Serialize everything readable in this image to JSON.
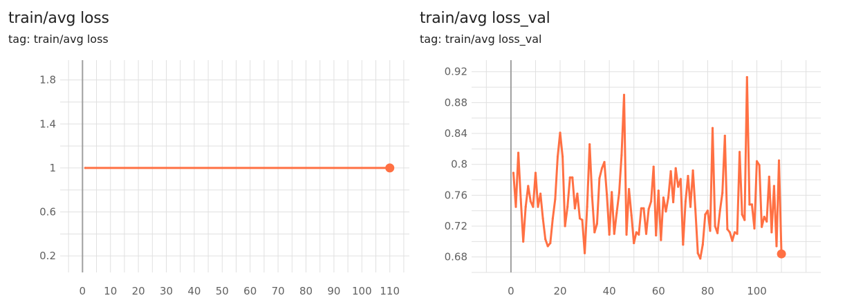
{
  "colors": {
    "series": "#ff7043",
    "grid": "#e0e0e0",
    "axis": "#9e9e9e",
    "tick_text": "#616161"
  },
  "chart_data": [
    {
      "type": "line",
      "title": "train/avg loss",
      "subtitle": "tag: train/avg loss",
      "xlabel": "",
      "ylabel": "",
      "xlim": [
        -8,
        117
      ],
      "ylim": [
        0.05,
        1.98
      ],
      "x_ticks": [
        0,
        10,
        20,
        30,
        40,
        50,
        60,
        70,
        80,
        90,
        100,
        110
      ],
      "y_ticks": [
        0.2,
        0.6,
        1,
        1.4,
        1.8
      ],
      "y_tick_labels": [
        "0.2",
        "0.6",
        "1",
        "1.4",
        "1.8"
      ],
      "grid": true,
      "last_point_marker": true,
      "series": [
        {
          "x": [
            1,
            110
          ],
          "values": [
            1,
            1
          ]
        }
      ]
    },
    {
      "type": "line",
      "title": "train/avg loss_val",
      "subtitle": "tag: train/avg loss_val",
      "xlabel": "",
      "ylabel": "",
      "xlim": [
        -16,
        126
      ],
      "ylim": [
        0.66,
        0.935
      ],
      "x_ticks": [
        0,
        20,
        40,
        60,
        80,
        100
      ],
      "y_ticks": [
        0.68,
        0.72,
        0.76,
        0.8,
        0.84,
        0.88,
        0.92
      ],
      "y_tick_labels": [
        "0.68",
        "0.72",
        "0.76",
        "0.8",
        "0.84",
        "0.88",
        "0.92"
      ],
      "grid": true,
      "last_point_marker": true,
      "series": [
        {
          "x": [
            1,
            2,
            3,
            4,
            5,
            6,
            7,
            8,
            9,
            10,
            11,
            12,
            13,
            14,
            15,
            16,
            17,
            18,
            19,
            20,
            21,
            22,
            23,
            24,
            25,
            26,
            27,
            28,
            29,
            30,
            31,
            32,
            33,
            34,
            35,
            36,
            37,
            38,
            39,
            40,
            41,
            42,
            43,
            44,
            45,
            46,
            47,
            48,
            49,
            50,
            51,
            52,
            53,
            54,
            55,
            56,
            57,
            58,
            59,
            60,
            61,
            62,
            63,
            64,
            65,
            66,
            67,
            68,
            69,
            70,
            71,
            72,
            73,
            74,
            75,
            76,
            77,
            78,
            79,
            80,
            81,
            82,
            83,
            84,
            85,
            86,
            87,
            88,
            89,
            90,
            91,
            92,
            93,
            94,
            95,
            96,
            97,
            98,
            99,
            100,
            101,
            102,
            103,
            104,
            105,
            106,
            107,
            108,
            109,
            110
          ],
          "values": [
            0.789,
            0.745,
            0.815,
            0.755,
            0.7,
            0.745,
            0.772,
            0.752,
            0.745,
            0.789,
            0.745,
            0.762,
            0.73,
            0.703,
            0.694,
            0.698,
            0.73,
            0.755,
            0.81,
            0.841,
            0.81,
            0.72,
            0.745,
            0.783,
            0.783,
            0.743,
            0.762,
            0.73,
            0.728,
            0.685,
            0.745,
            0.826,
            0.758,
            0.712,
            0.723,
            0.782,
            0.795,
            0.803,
            0.761,
            0.709,
            0.764,
            0.71,
            0.737,
            0.763,
            0.812,
            0.89,
            0.709,
            0.768,
            0.734,
            0.698,
            0.712,
            0.709,
            0.743,
            0.743,
            0.71,
            0.742,
            0.752,
            0.797,
            0.708,
            0.766,
            0.702,
            0.757,
            0.739,
            0.757,
            0.791,
            0.751,
            0.795,
            0.771,
            0.781,
            0.696,
            0.752,
            0.785,
            0.745,
            0.792,
            0.742,
            0.685,
            0.678,
            0.696,
            0.735,
            0.74,
            0.714,
            0.847,
            0.72,
            0.711,
            0.74,
            0.763,
            0.837,
            0.716,
            0.712,
            0.701,
            0.712,
            0.71,
            0.816,
            0.735,
            0.728,
            0.913,
            0.748,
            0.748,
            0.717,
            0.804,
            0.799,
            0.719,
            0.732,
            0.726,
            0.784,
            0.712,
            0.772,
            0.694,
            0.805,
            0.684
          ]
        }
      ]
    }
  ]
}
